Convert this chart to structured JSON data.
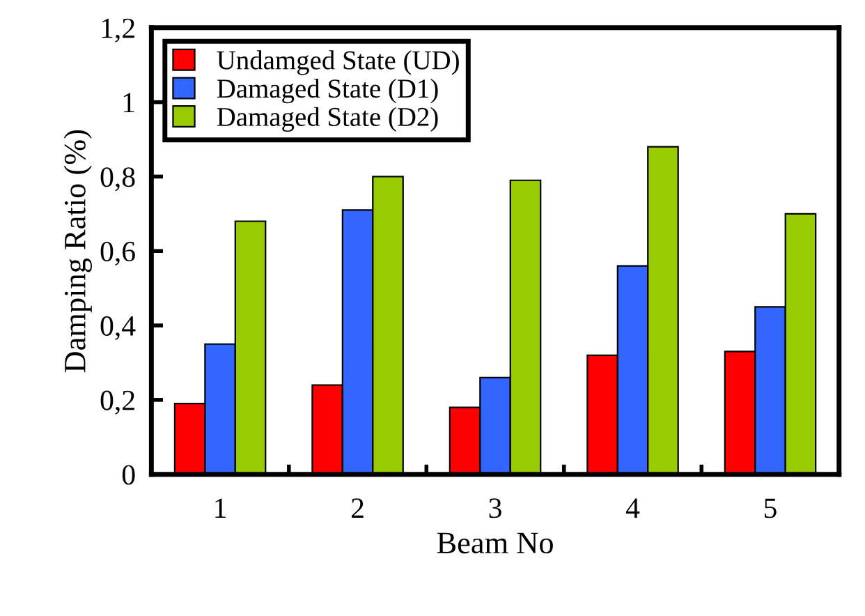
{
  "chart_data": {
    "type": "bar",
    "xlabel": "Beam No",
    "ylabel": "Damping Ratio (%)",
    "categories": [
      "1",
      "2",
      "3",
      "4",
      "5"
    ],
    "series": [
      {
        "name": "Undamged State (UD)",
        "color": "#ff0000",
        "values": [
          0.19,
          0.24,
          0.18,
          0.32,
          0.33
        ]
      },
      {
        "name": "Damaged State (D1)",
        "color": "#3366ff",
        "values": [
          0.35,
          0.71,
          0.26,
          0.56,
          0.45
        ]
      },
      {
        "name": "Damaged State (D2)",
        "color": "#99cc00",
        "values": [
          0.68,
          0.8,
          0.79,
          0.88,
          0.7
        ]
      }
    ],
    "ylim": [
      0,
      1.2
    ],
    "yticks": [
      0,
      {
        "value": 0.2,
        "label": "0,2"
      },
      {
        "value": 0.4,
        "label": "0,4"
      },
      {
        "value": 0.6,
        "label": "0,6"
      },
      {
        "value": 0.8,
        "label": "0,8"
      },
      1,
      {
        "value": 1.2,
        "label": "1,2"
      }
    ],
    "legend": "top left",
    "grid": false
  }
}
